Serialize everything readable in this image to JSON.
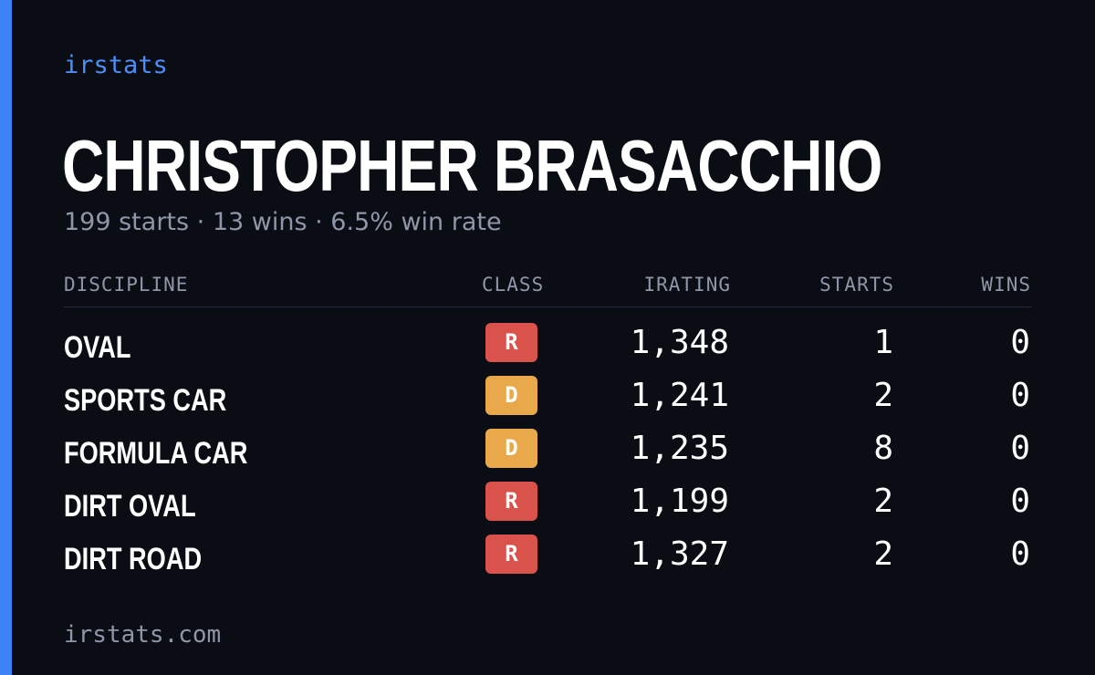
{
  "brand": "irstats",
  "driver": {
    "name": "CHRISTOPHER BRASACCHIO",
    "summary": "199 starts · 13 wins · 6.5% win rate"
  },
  "colors": {
    "accent": "#3b82f6",
    "class_r": "#d9524b",
    "class_d": "#e9a94b",
    "background": "#0b0d14"
  },
  "table": {
    "headers": {
      "discipline": "DISCIPLINE",
      "class": "CLASS",
      "irating": "IRATING",
      "starts": "STARTS",
      "wins": "WINS"
    },
    "rows": [
      {
        "discipline": "OVAL",
        "class": "R",
        "irating": "1,348",
        "starts": "1",
        "wins": "0"
      },
      {
        "discipline": "SPORTS CAR",
        "class": "D",
        "irating": "1,241",
        "starts": "2",
        "wins": "0"
      },
      {
        "discipline": "FORMULA CAR",
        "class": "D",
        "irating": "1,235",
        "starts": "8",
        "wins": "0"
      },
      {
        "discipline": "DIRT OVAL",
        "class": "R",
        "irating": "1,199",
        "starts": "2",
        "wins": "0"
      },
      {
        "discipline": "DIRT ROAD",
        "class": "R",
        "irating": "1,327",
        "starts": "2",
        "wins": "0"
      }
    ]
  },
  "footer": "irstats.com"
}
